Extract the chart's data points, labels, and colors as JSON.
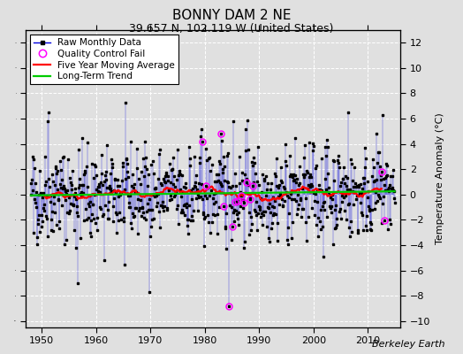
{
  "title": "BONNY DAM 2 NE",
  "subtitle": "39.657 N, 102.119 W (United States)",
  "ylabel": "Temperature Anomaly (°C)",
  "credit": "Berkeley Earth",
  "xlim": [
    1947,
    2016
  ],
  "ylim": [
    -10.5,
    13
  ],
  "yticks": [
    -10,
    -8,
    -6,
    -4,
    -2,
    0,
    2,
    4,
    6,
    8,
    10,
    12
  ],
  "xticks": [
    1950,
    1960,
    1970,
    1980,
    1990,
    2000,
    2010
  ],
  "seed": 42,
  "n_months": 804,
  "start_year": 1948,
  "background_color": "#e0e0e0",
  "plot_background": "#e0e0e0",
  "raw_line_color": "#0000dd",
  "raw_marker_color": "#000000",
  "qc_fail_color": "#ff00ff",
  "moving_avg_color": "#ff0000",
  "trend_color": "#00cc00",
  "moving_avg_window": 60,
  "title_fontsize": 11,
  "subtitle_fontsize": 9,
  "ylabel_fontsize": 8,
  "tick_fontsize": 8,
  "legend_fontsize": 7.5,
  "credit_fontsize": 8
}
